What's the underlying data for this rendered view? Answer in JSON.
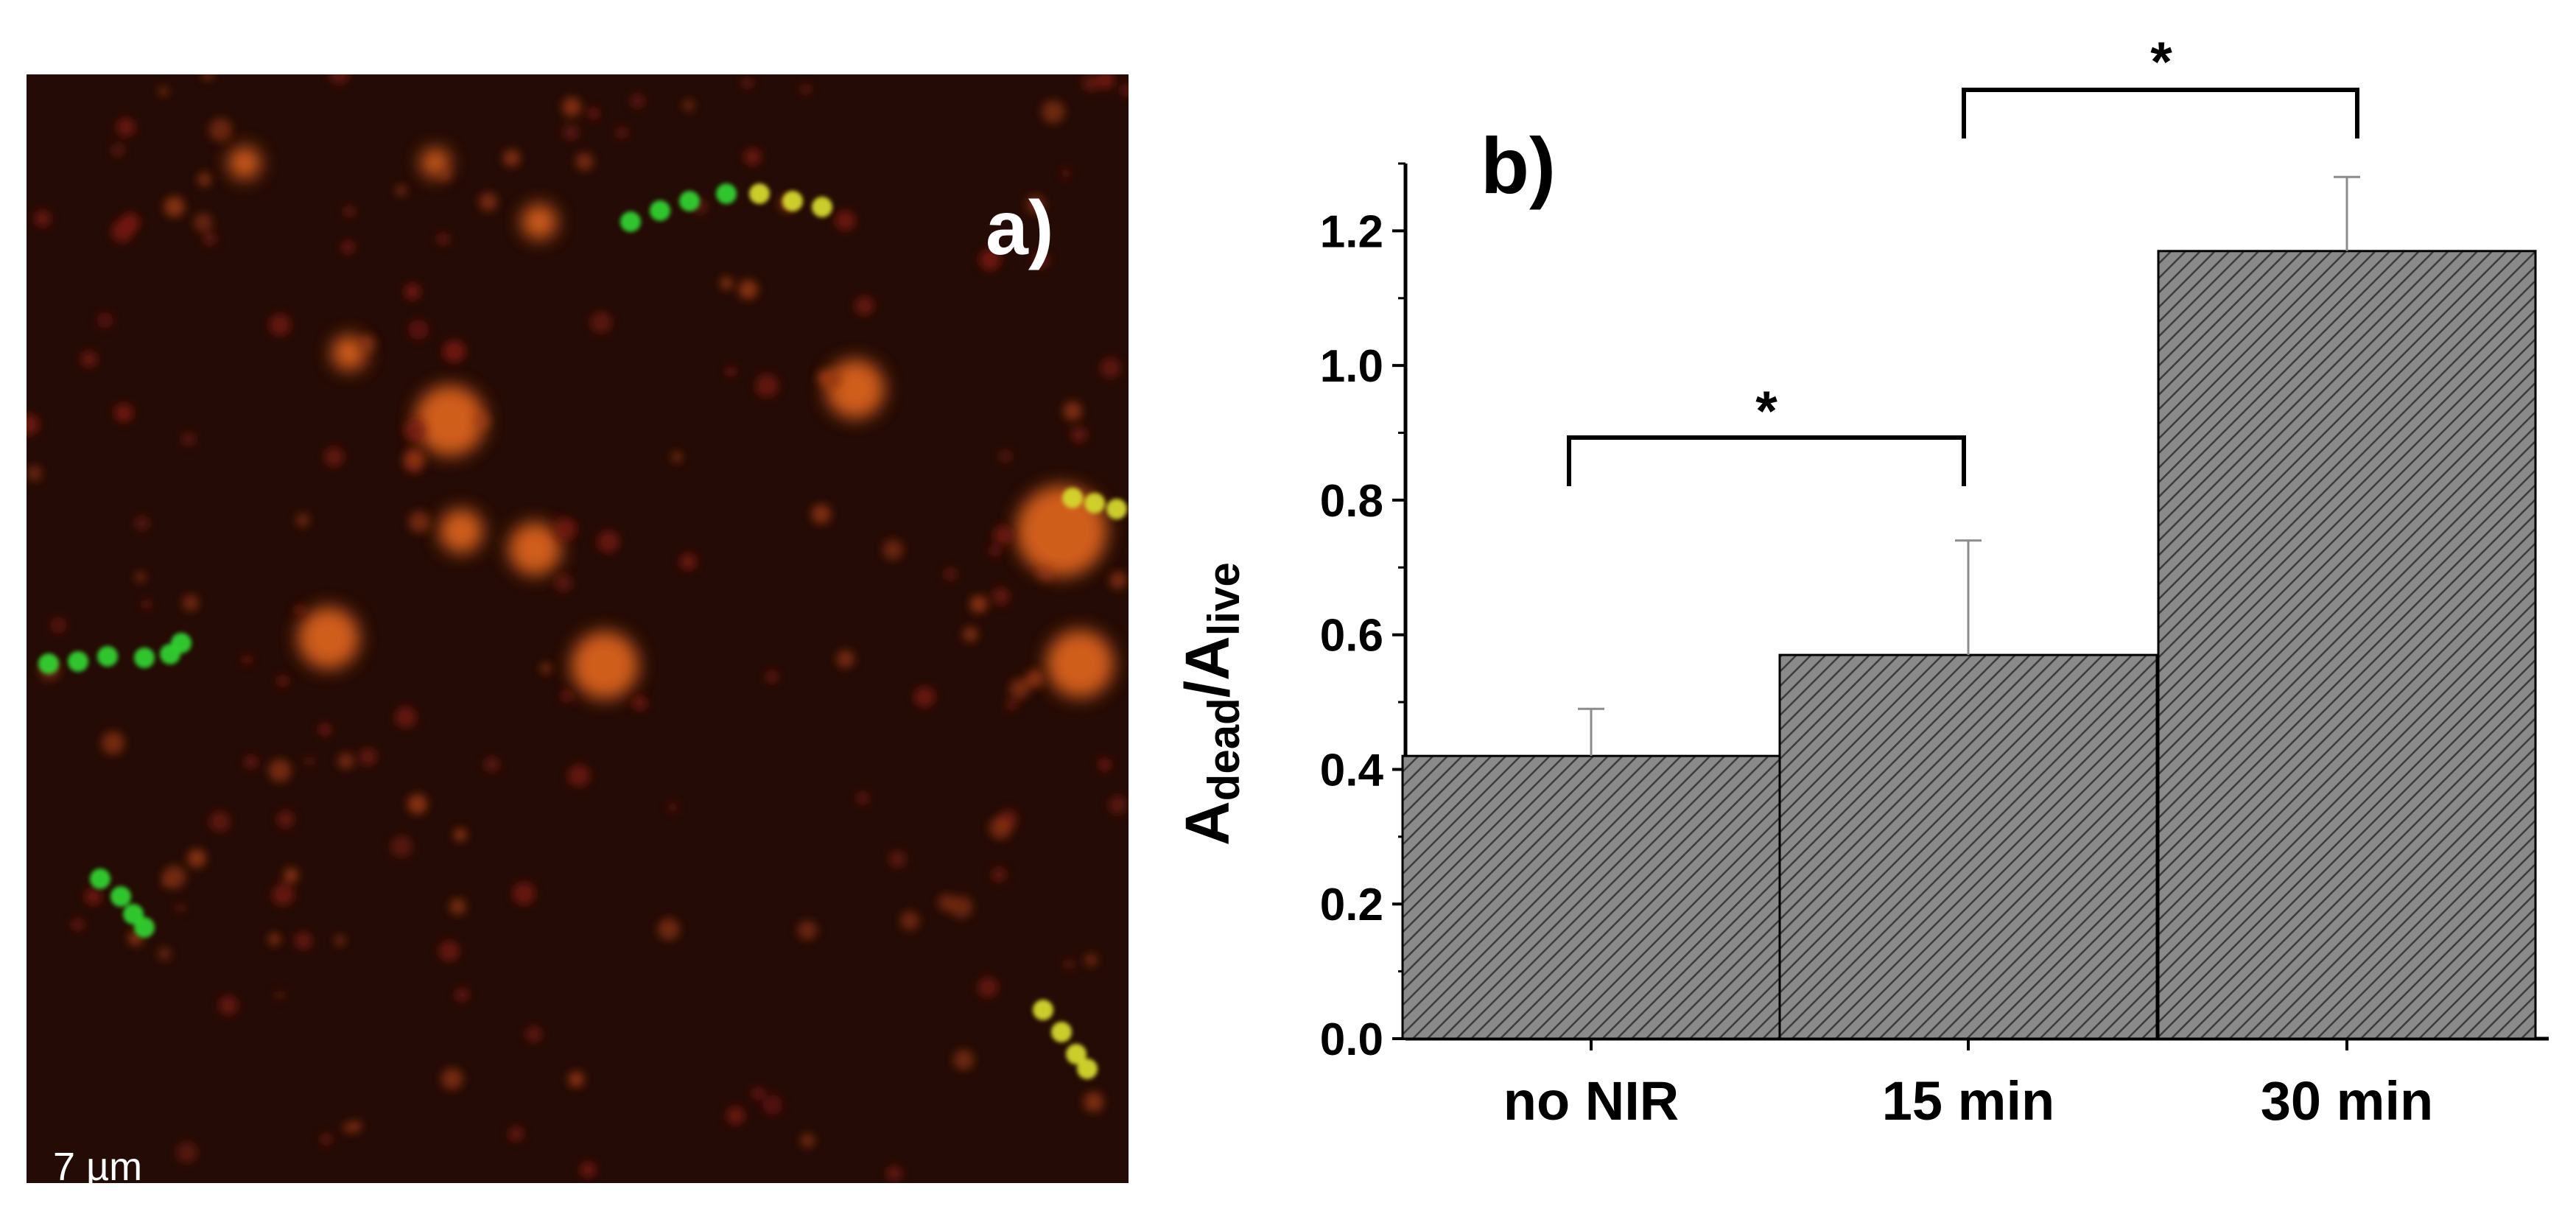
{
  "panel_a": {
    "label": "a)",
    "scale_bar_label": "7 µm"
  },
  "panel_b": {
    "label": "b)"
  },
  "chart_data": {
    "type": "bar",
    "categories": [
      "no NIR",
      "15 min",
      "30 min"
    ],
    "values": [
      0.42,
      0.57,
      1.17
    ],
    "error_bars": [
      0.07,
      0.17,
      0.11
    ],
    "title": "",
    "xlabel": "",
    "ylabel_main": "A",
    "ylabel_sub1": "dead",
    "ylabel_sep": "/A",
    "ylabel_sub2": "live",
    "ylim": [
      0,
      1.3
    ],
    "yticks": [
      "0.0",
      "0.2",
      "0.4",
      "0.6",
      "0.8",
      "1.0",
      "1.2"
    ],
    "grid": false,
    "bar_fill": "#7f7f7f",
    "significance": [
      {
        "from": 0,
        "to": 1,
        "label": "*"
      },
      {
        "from": 1,
        "to": 2,
        "label": "*"
      }
    ]
  }
}
